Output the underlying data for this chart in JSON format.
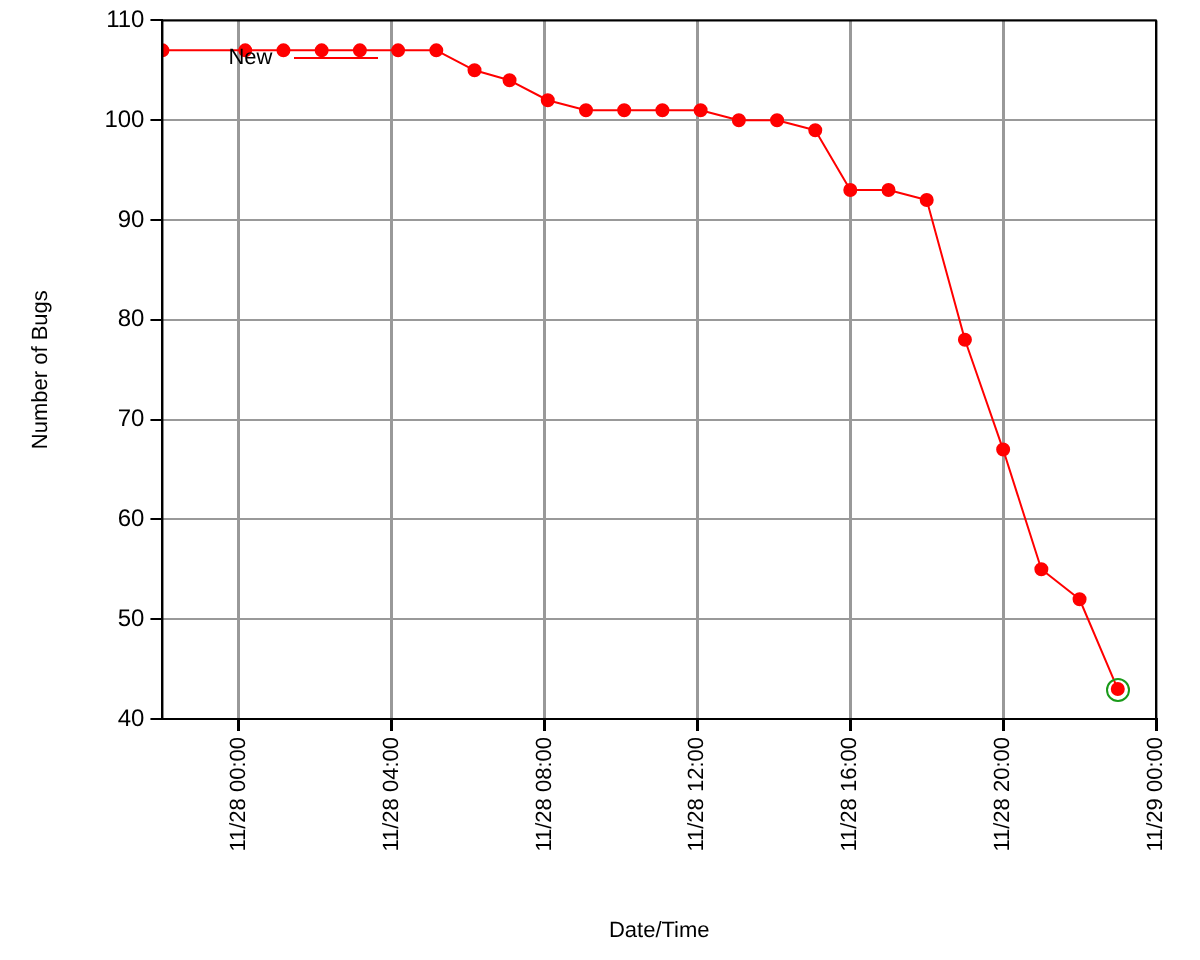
{
  "chart_data": {
    "type": "line",
    "xlabel": "Date/Time",
    "ylabel": "Number of Bugs",
    "series": [
      {
        "name": "New",
        "color": "#ff0000",
        "x": [
          "--11-27T22:00",
          "--11-28T00:10",
          "--11-28T01:10",
          "--11-28T02:10",
          "--11-28T03:10",
          "--11-28T04:10",
          "--11-28T05:10",
          "--11-28T06:10",
          "--11-28T07:05",
          "--11-28T08:05",
          "--11-28T09:05",
          "--11-28T10:05",
          "--11-28T11:05",
          "--11-28T12:05",
          "--11-28T13:05",
          "--11-28T14:05",
          "--11-28T15:05",
          "--11-28T16:00",
          "--11-28T17:00",
          "--11-28T18:00",
          "--11-28T19:00",
          "--11-28T20:00",
          "--11-28T21:00",
          "--11-28T22:00",
          "--11-28T23:00"
        ],
        "values": [
          107,
          107,
          107,
          107,
          107,
          107,
          107,
          105,
          104,
          102,
          101,
          101,
          101,
          101,
          100,
          100,
          99,
          93,
          93,
          92,
          78,
          67,
          55,
          52,
          43
        ]
      }
    ],
    "xlim": [
      "--11-27T22:00",
      "--11-29T00:00"
    ],
    "xticks": [
      {
        "value": "--11-28T00:00",
        "label": "11/28 00:00"
      },
      {
        "value": "--11-28T04:00",
        "label": "11/28 04:00"
      },
      {
        "value": "--11-28T08:00",
        "label": "11/28 08:00"
      },
      {
        "value": "--11-28T12:00",
        "label": "11/28 12:00"
      },
      {
        "value": "--11-28T16:00",
        "label": "11/28 16:00"
      },
      {
        "value": "--11-28T20:00",
        "label": "11/28 20:00"
      },
      {
        "value": "--11-29T00:00",
        "label": "11/29 00:00"
      }
    ],
    "ylim": [
      40,
      110
    ],
    "yticks": [
      40,
      50,
      60,
      70,
      80,
      90,
      100,
      110
    ],
    "grid": true,
    "legend": "top left",
    "marker": "circle",
    "line_style": "solid"
  }
}
